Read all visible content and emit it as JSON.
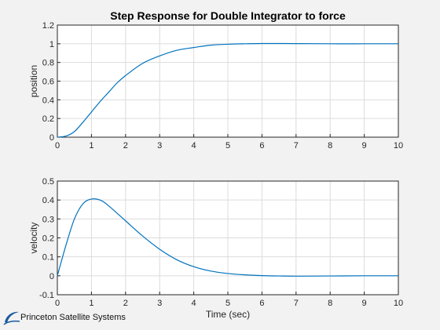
{
  "chart_data": [
    {
      "type": "line",
      "title": "Step Response for Double Integrator to force",
      "xlabel": "",
      "ylabel": "position",
      "xlim": [
        0,
        10
      ],
      "ylim": [
        0,
        1.2
      ],
      "xticks": [
        0,
        1,
        2,
        3,
        4,
        5,
        6,
        7,
        8,
        9,
        10
      ],
      "yticks": [
        0,
        0.2,
        0.4,
        0.6,
        0.8,
        1,
        1.2
      ],
      "xtick_labels": [
        "0",
        "1",
        "2",
        "3",
        "4",
        "5",
        "6",
        "7",
        "8",
        "9",
        "10"
      ],
      "ytick_labels": [
        "0",
        "0.2",
        "0.4",
        "0.6",
        "0.8",
        "1",
        "1.2"
      ],
      "grid": true,
      "series": [
        {
          "name": "position",
          "color": "#0072BD",
          "x": [
            0,
            0.25,
            0.5,
            0.75,
            1,
            1.25,
            1.5,
            1.75,
            2,
            2.5,
            3,
            3.5,
            4,
            4.5,
            5,
            5.5,
            6,
            7,
            8,
            9,
            10
          ],
          "y": [
            0,
            0.012,
            0.06,
            0.16,
            0.27,
            0.38,
            0.48,
            0.58,
            0.66,
            0.79,
            0.87,
            0.93,
            0.96,
            0.985,
            0.995,
            1.0,
            1.003,
            1.002,
            1.0,
            1.0,
            1.0
          ]
        }
      ]
    },
    {
      "type": "line",
      "title": "",
      "xlabel": "Time (sec)",
      "ylabel": "velocity",
      "xlim": [
        0,
        10
      ],
      "ylim": [
        -0.1,
        0.5
      ],
      "xticks": [
        0,
        1,
        2,
        3,
        4,
        5,
        6,
        7,
        8,
        9,
        10
      ],
      "yticks": [
        -0.1,
        0,
        0.1,
        0.2,
        0.3,
        0.4,
        0.5
      ],
      "xtick_labels": [
        "0",
        "1",
        "2",
        "3",
        "4",
        "5",
        "6",
        "7",
        "8",
        "9",
        "10"
      ],
      "ytick_labels": [
        "-0.1",
        "0",
        "0.1",
        "0.2",
        "0.3",
        "0.4",
        "0.5"
      ],
      "grid": true,
      "series": [
        {
          "name": "velocity",
          "color": "#0072BD",
          "x": [
            0,
            0.25,
            0.5,
            0.75,
            1,
            1.25,
            1.5,
            2,
            2.5,
            3,
            3.5,
            4,
            4.5,
            5,
            5.5,
            6,
            6.5,
            7,
            8,
            9,
            10
          ],
          "y": [
            0,
            0.16,
            0.3,
            0.38,
            0.405,
            0.4,
            0.37,
            0.29,
            0.21,
            0.14,
            0.085,
            0.048,
            0.025,
            0.012,
            0.005,
            0.001,
            -0.001,
            -0.002,
            -0.001,
            0,
            0
          ]
        }
      ]
    }
  ],
  "logo": {
    "text": "Princeton Satellite Systems",
    "color": "#1a5a9e"
  }
}
